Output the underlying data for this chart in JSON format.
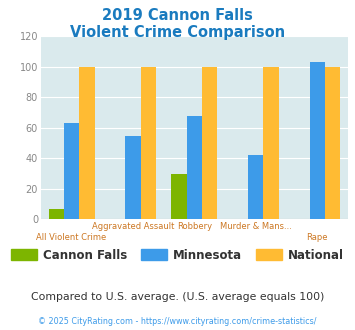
{
  "title_line1": "2019 Cannon Falls",
  "title_line2": "Violent Crime Comparison",
  "cannon_falls": [
    7,
    0,
    30,
    0,
    0
  ],
  "minnesota": [
    63,
    55,
    68,
    42,
    103
  ],
  "national": [
    100,
    100,
    100,
    100,
    100
  ],
  "cannon_falls_color": "#7db500",
  "minnesota_color": "#3d9be9",
  "national_color": "#ffbb33",
  "ylim": [
    0,
    120
  ],
  "yticks": [
    0,
    20,
    40,
    60,
    80,
    100,
    120
  ],
  "plot_bg_color": "#daeaed",
  "title_color": "#1a7bbf",
  "label_top_row": [
    "",
    "Aggravated Assault",
    "Robbery",
    "Murder & Mans...",
    ""
  ],
  "label_bot_row": [
    "All Violent Crime",
    "",
    "",
    "",
    "Rape"
  ],
  "label_color": "#cc7722",
  "legend_labels": [
    "Cannon Falls",
    "Minnesota",
    "National"
  ],
  "legend_text_color": "#333333",
  "footer_text": "Compared to U.S. average. (U.S. average equals 100)",
  "footer_color": "#333333",
  "copyright_text": "© 2025 CityRating.com - https://www.cityrating.com/crime-statistics/",
  "copyright_color": "#3d9be9",
  "bar_width": 0.25,
  "grid_color": "#ffffff"
}
